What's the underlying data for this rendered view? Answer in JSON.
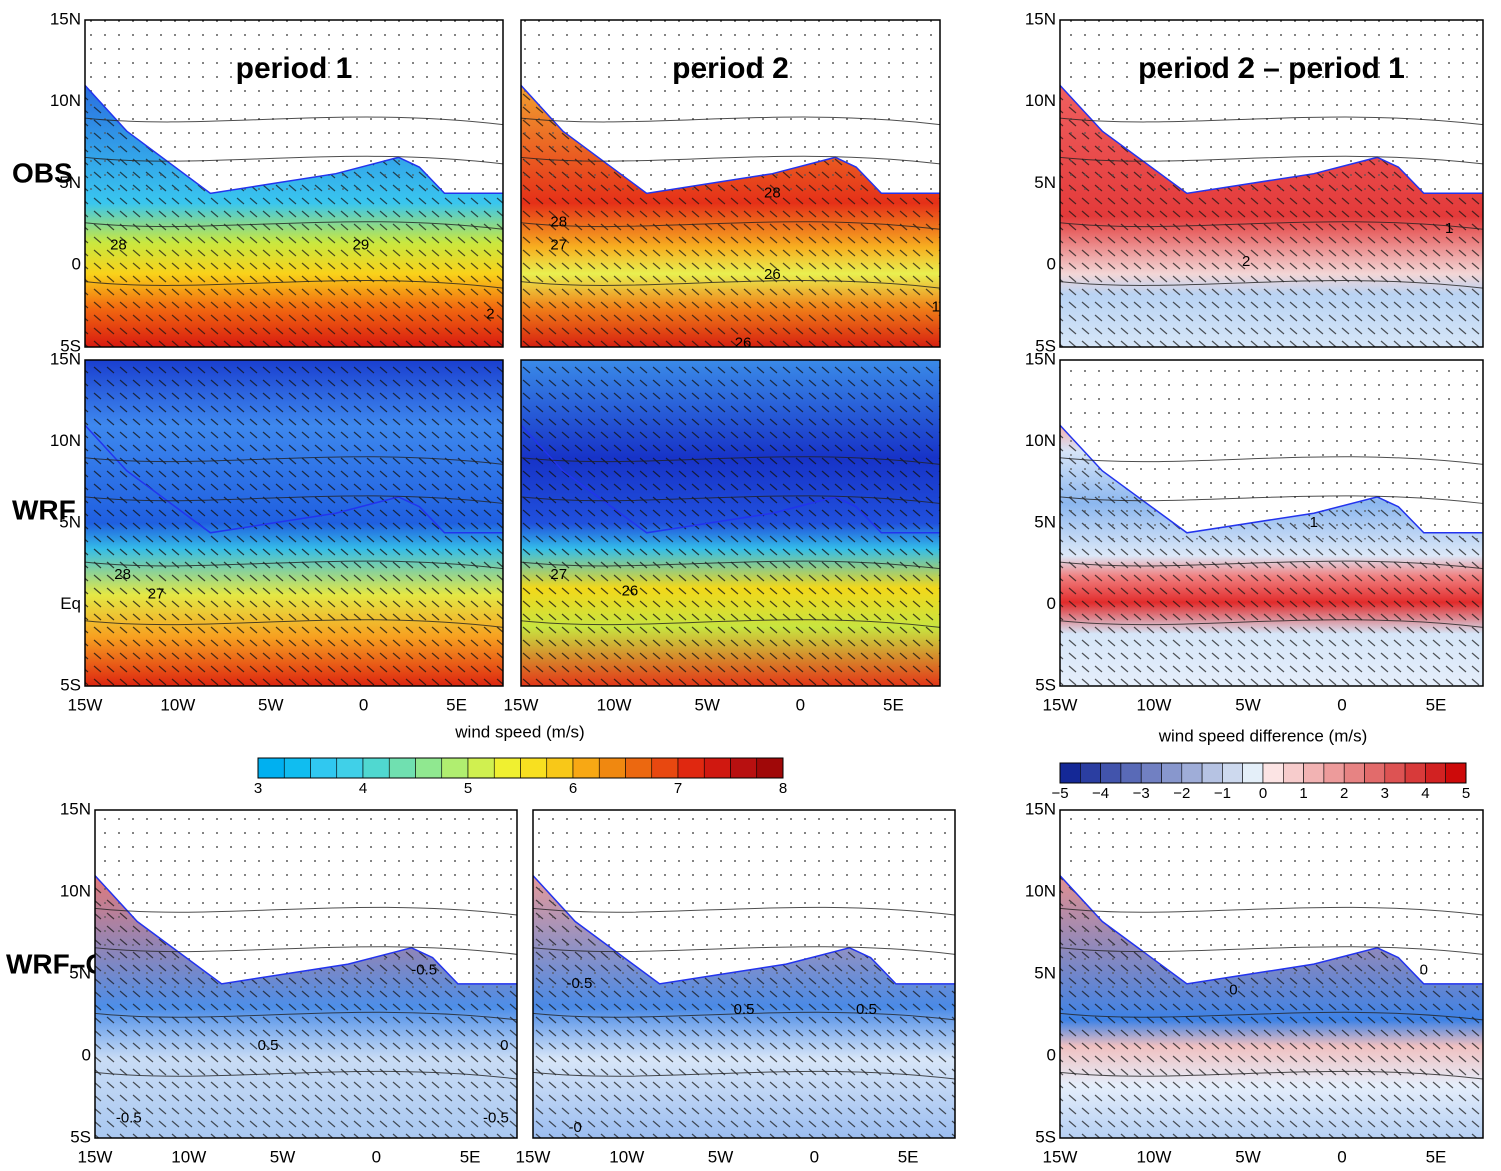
{
  "row_labels": [
    "OBS",
    "WRF",
    "WRF–OBS"
  ],
  "panels": [
    {
      "title": "period 1",
      "lat_ticks": [
        "15N",
        "10N",
        "5N",
        "0",
        "5S"
      ],
      "contour_labels": [
        "28",
        "29",
        "2"
      ]
    },
    {
      "title": "period 2",
      "contour_labels": [
        "28",
        "27",
        "28",
        "26",
        "26",
        "1"
      ]
    },
    {
      "title": "period 2 – period 1",
      "lat_ticks": [
        "15N",
        "10N",
        "5N",
        "0",
        "5S"
      ],
      "contour_labels": [
        "2",
        "1"
      ]
    },
    {
      "lat_ticks": [
        "15N",
        "10N",
        "5N",
        "Eq",
        "5S"
      ],
      "lon_ticks": [
        "15W",
        "10W",
        "5W",
        "0",
        "5E"
      ],
      "contour_labels": [
        "28",
        "27"
      ]
    },
    {
      "lon_ticks": [
        "15W",
        "10W",
        "5W",
        "0",
        "5E"
      ],
      "contour_labels": [
        "27",
        "26"
      ]
    },
    {
      "lat_ticks": [
        "15N",
        "10N",
        "5N",
        "0",
        "5S"
      ],
      "lon_ticks": [
        "15W",
        "10W",
        "5W",
        "0",
        "5E"
      ],
      "contour_labels": [
        "1"
      ]
    },
    {
      "lat_ticks": [
        "15N",
        "10N",
        "5N",
        "0",
        "5S"
      ],
      "lon_ticks": [
        "15W",
        "10W",
        "5W",
        "0",
        "5E"
      ],
      "contour_labels": [
        "-0.5",
        "0.5",
        "-0.5",
        "-0.5",
        "0"
      ]
    },
    {
      "lon_ticks": [
        "15W",
        "10W",
        "5W",
        "0",
        "5E"
      ],
      "contour_labels": [
        "-0.5",
        "0.5",
        "0.5",
        "-0"
      ]
    },
    {
      "lat_ticks": [
        "15N",
        "10N",
        "5N",
        "0",
        "5S"
      ],
      "lon_ticks": [
        "15W",
        "10W",
        "5W",
        "0",
        "5E"
      ],
      "contour_labels": [
        "0",
        "0"
      ]
    }
  ],
  "xlabel_speed": "wind speed (m/s)",
  "xlabel_diff": "wind speed difference (m/s)",
  "colorbar_speed": [
    "3",
    "4",
    "5",
    "6",
    "7",
    "8"
  ],
  "colorbar_diff": [
    "−5",
    "−4",
    "−3",
    "−2",
    "−1",
    "0",
    "1",
    "2",
    "3",
    "4",
    "5"
  ]
}
